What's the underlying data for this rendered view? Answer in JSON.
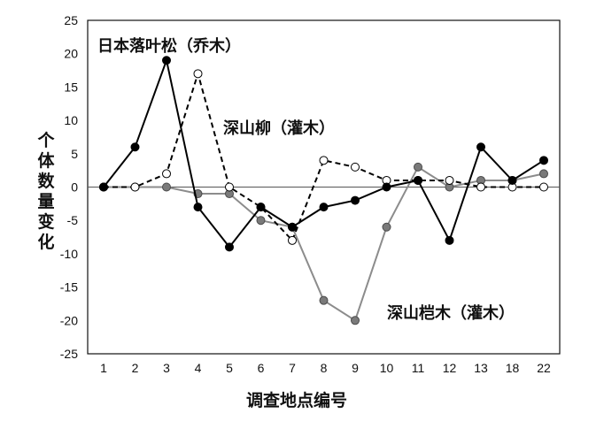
{
  "chart_data": {
    "type": "line",
    "xlabel": "调查地点编号",
    "ylabel": "个体数量变化",
    "categories": [
      "1",
      "2",
      "3",
      "4",
      "5",
      "6",
      "7",
      "8",
      "9",
      "10",
      "11",
      "12",
      "13",
      "18",
      "22"
    ],
    "ylim": [
      -25,
      25
    ],
    "yticks": [
      25,
      20,
      15,
      10,
      5,
      0,
      -5,
      -10,
      -15,
      -20,
      -25
    ],
    "series": [
      {
        "name": "日本落叶松（乔木）",
        "color": "#000000",
        "marker_fill": "#000000",
        "dash": false,
        "values": [
          0,
          6,
          19,
          -3,
          -9,
          -3,
          -6,
          -3,
          -2,
          0,
          1,
          -8,
          6,
          1,
          4
        ]
      },
      {
        "name": "深山柳（灌木）",
        "color": "#000000",
        "marker_fill": "#ffffff",
        "dash": true,
        "values": [
          0,
          0,
          2,
          17,
          0,
          -3,
          -8,
          4,
          3,
          1,
          1,
          1,
          0,
          0,
          0
        ]
      },
      {
        "name": "深山桤木（灌木）",
        "color": "#8c8c8c",
        "marker_fill": "#7a7a7a",
        "dash": false,
        "values": [
          0,
          0,
          0,
          -1,
          -1,
          -5,
          -6,
          -17,
          -20,
          -6,
          3,
          0,
          1,
          1,
          2
        ]
      }
    ],
    "annotations": [
      "日本落叶松（乔木）",
      "深山柳（灌木）",
      "深山桤木（灌木）"
    ],
    "zero_line": true,
    "grid": false
  }
}
